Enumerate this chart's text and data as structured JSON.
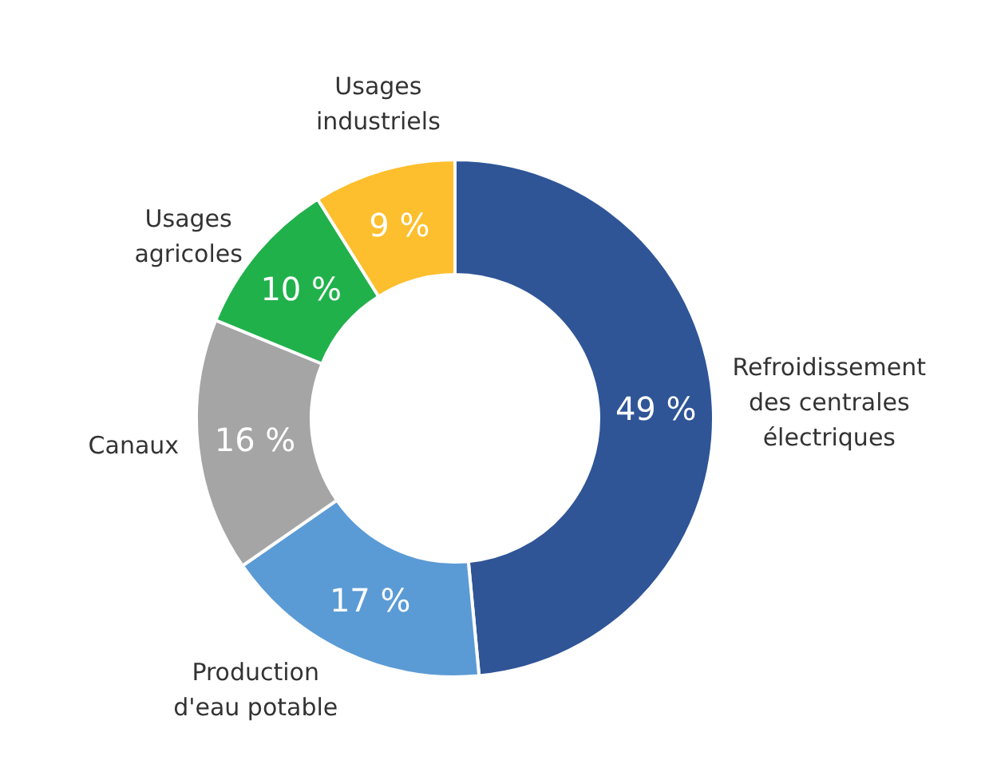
{
  "chart_data": {
    "type": "donut",
    "categories": [
      "Refroidissement des centrales électriques",
      "Production d'eau potable",
      "Canaux",
      "Usages agricoles",
      "Usages industriels"
    ],
    "values": [
      49,
      17,
      16,
      10,
      9
    ],
    "colors": [
      "#2f5597",
      "#5b9bd5",
      "#a5a5a5",
      "#21b14b",
      "#fdbf2d"
    ],
    "value_labels": [
      "49 %",
      "17 %",
      "16 %",
      "10 %",
      "9 %"
    ]
  }
}
